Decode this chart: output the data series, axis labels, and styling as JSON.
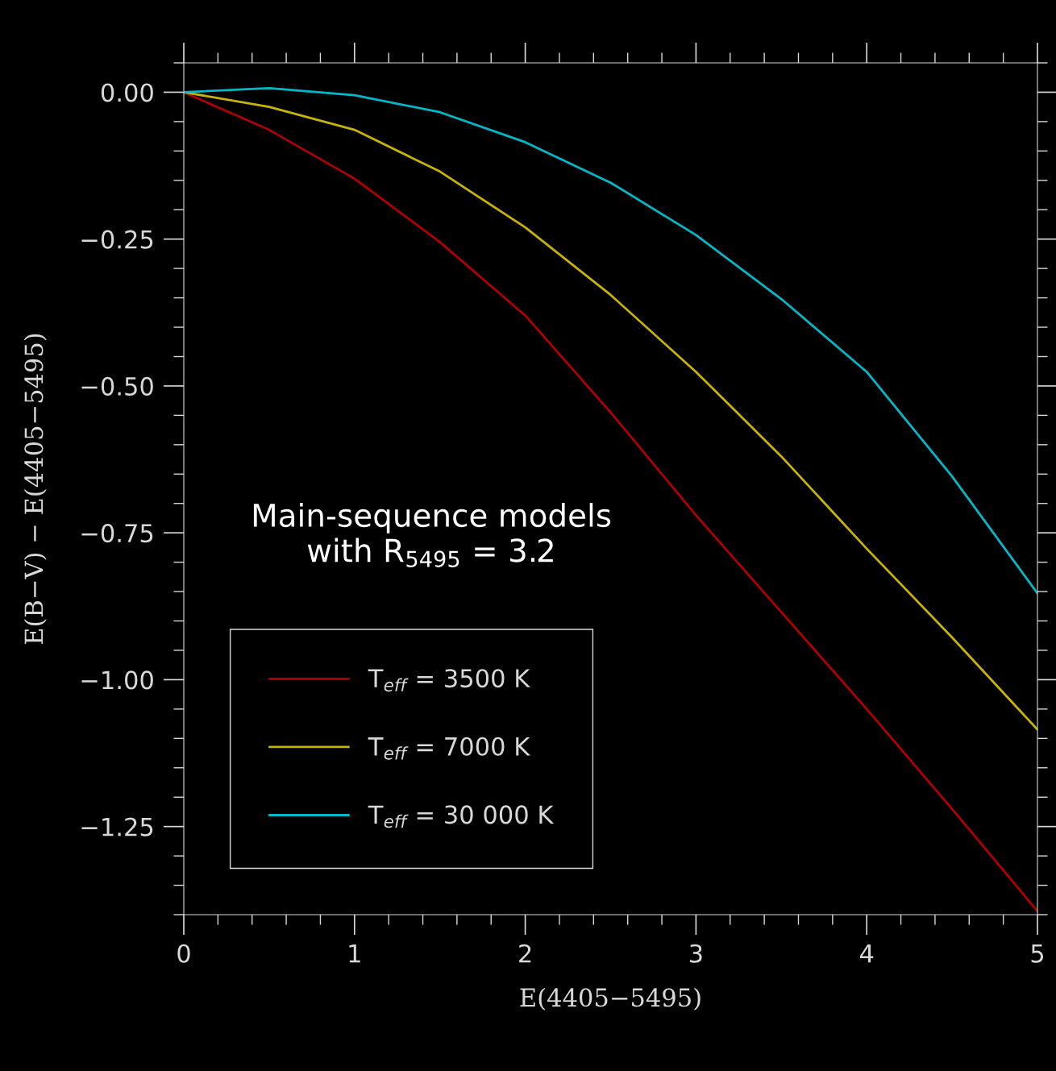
{
  "chart_data": {
    "type": "line",
    "xlabel": "E(4405−5495)",
    "ylabel": "E(B−V) − E(4405−5495)",
    "annotations": [
      "Main-sequence models\nwith R$_{5495}$ = 3.2"
    ],
    "x": [
      0,
      0.5,
      1,
      1.5,
      2,
      2.5,
      3,
      3.5,
      4,
      4.5,
      5
    ],
    "series": [
      {
        "name": "T$_{eff}$ = 3500 K",
        "color": "#b00000",
        "values": [
          0,
          -0.064,
          -0.147,
          -0.255,
          -0.38,
          -0.545,
          -0.72,
          -0.885,
          -1.05,
          -1.22,
          -1.394
        ]
      },
      {
        "name": "T$_{eff}$ = 7000 K",
        "color": "#c8b400",
        "values": [
          0,
          -0.025,
          -0.064,
          -0.135,
          -0.23,
          -0.345,
          -0.476,
          -0.62,
          -0.777,
          -0.928,
          -1.085
        ]
      },
      {
        "name": "T$_{eff}$ = 30 000 K",
        "color": "#00b8c8",
        "values": [
          0,
          0.007,
          -0.005,
          -0.034,
          -0.085,
          -0.154,
          -0.243,
          -0.352,
          -0.476,
          -0.654,
          -0.853
        ]
      }
    ],
    "xlim": [
      0,
      5
    ],
    "ylim": [
      -1.4,
      0.05
    ],
    "xticks": [
      0,
      1,
      2,
      3,
      4,
      5
    ],
    "yticks": [
      {
        "value": 0,
        "label": "0.00"
      },
      {
        "value": -0.25,
        "label": "−0.25"
      },
      {
        "value": -0.5,
        "label": "−0.50"
      },
      {
        "value": -0.75,
        "label": "−0.75"
      },
      {
        "value": -1.0,
        "label": "−1.00"
      },
      {
        "value": -1.25,
        "label": "−1.25"
      }
    ],
    "legend": "bottom left",
    "grid": false,
    "marker": "none",
    "line_style": "solid"
  }
}
